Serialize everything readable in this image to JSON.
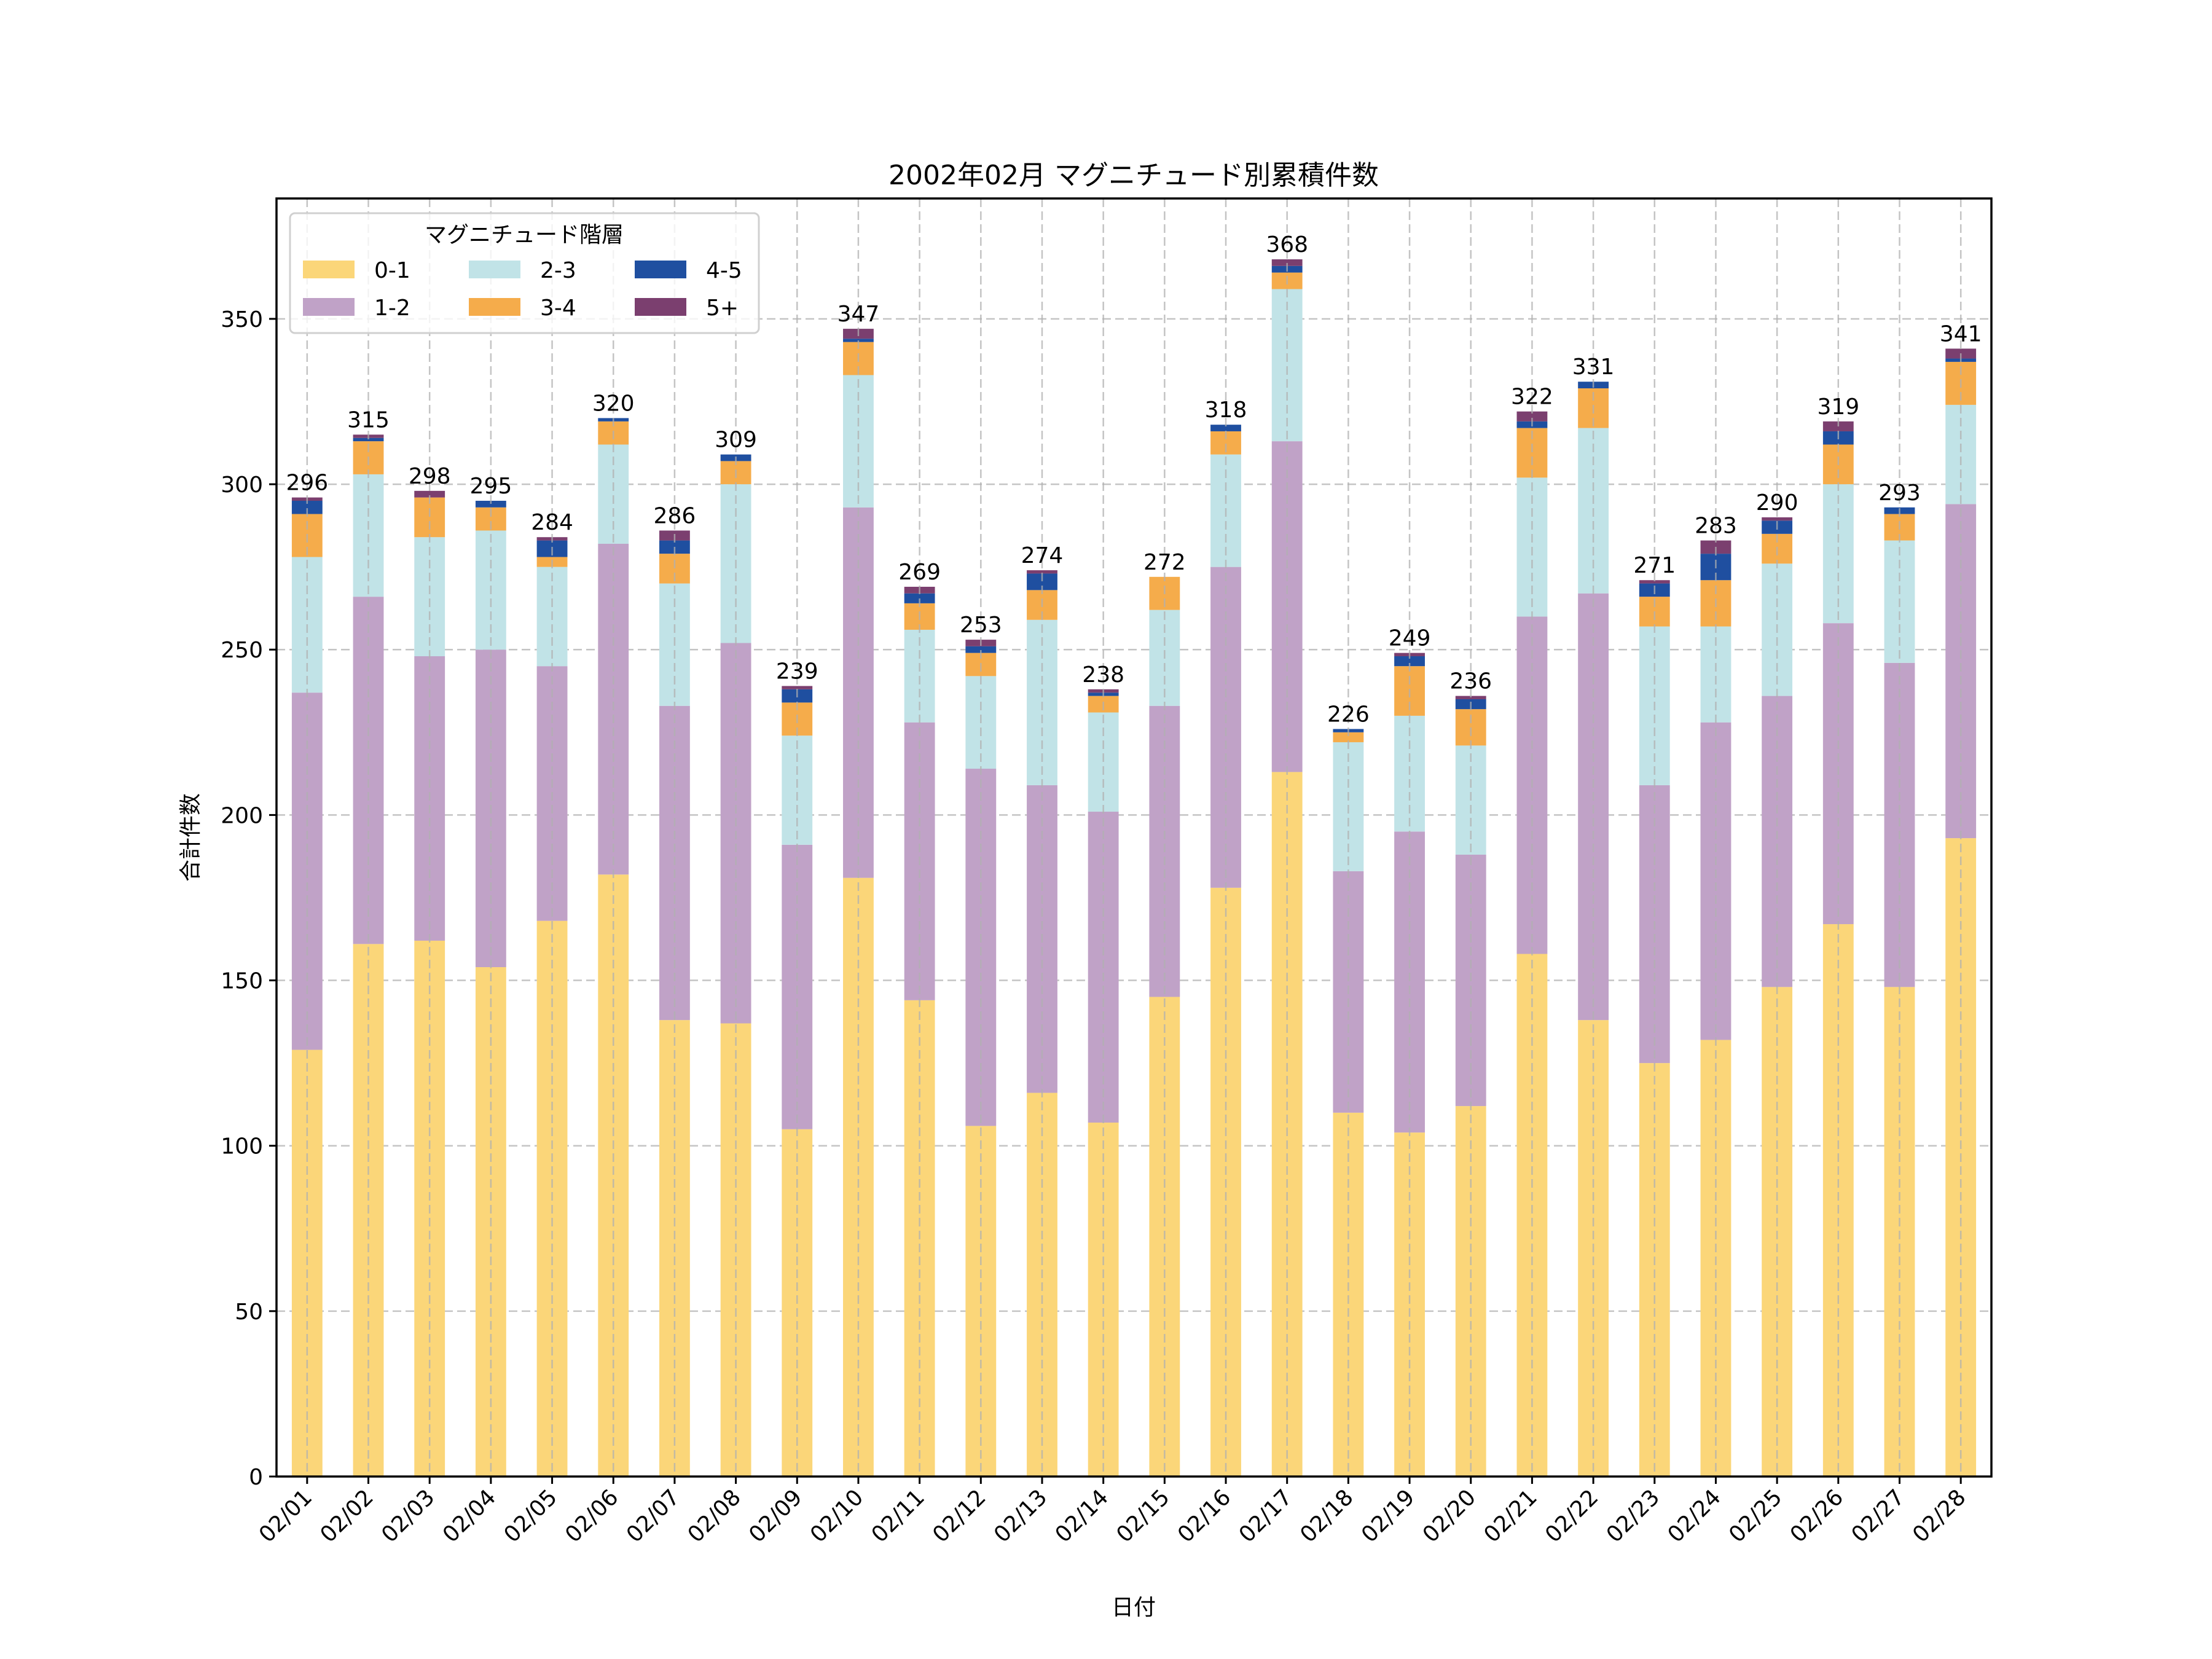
{
  "chart_data": {
    "type": "bar",
    "stacked": true,
    "title": "2002年02月 マグニチュード別累積件数",
    "xlabel": "日付",
    "ylabel": "合計件数",
    "ylim": [
      0,
      386.4
    ],
    "yticks": [
      0,
      50,
      100,
      150,
      200,
      250,
      300,
      350
    ],
    "grid": true,
    "legend": {
      "title": "マグニチュード階層",
      "position": "top-left",
      "columns": 3
    },
    "categories": [
      "02/01",
      "02/02",
      "02/03",
      "02/04",
      "02/05",
      "02/06",
      "02/07",
      "02/08",
      "02/09",
      "02/10",
      "02/11",
      "02/12",
      "02/13",
      "02/14",
      "02/15",
      "02/16",
      "02/17",
      "02/18",
      "02/19",
      "02/20",
      "02/21",
      "02/22",
      "02/23",
      "02/24",
      "02/25",
      "02/26",
      "02/27",
      "02/28"
    ],
    "series": [
      {
        "name": "0-1",
        "color": "#FBD679",
        "values": [
          129,
          161,
          162,
          154,
          168,
          182,
          138,
          137,
          105,
          181,
          144,
          106,
          116,
          107,
          145,
          178,
          213,
          110,
          104,
          112,
          158,
          138,
          125,
          132,
          148,
          167,
          148,
          193
        ]
      },
      {
        "name": "1-2",
        "color": "#C0A2C7",
        "values": [
          108,
          105,
          86,
          96,
          77,
          100,
          95,
          115,
          86,
          112,
          84,
          108,
          93,
          94,
          88,
          97,
          100,
          73,
          91,
          76,
          102,
          129,
          84,
          96,
          88,
          91,
          98,
          101
        ]
      },
      {
        "name": "2-3",
        "color": "#C1E3E7",
        "values": [
          41,
          37,
          36,
          36,
          30,
          30,
          37,
          48,
          33,
          40,
          28,
          28,
          50,
          30,
          29,
          34,
          46,
          39,
          35,
          33,
          42,
          50,
          48,
          29,
          40,
          42,
          37,
          30
        ]
      },
      {
        "name": "3-4",
        "color": "#F5AC4B",
        "values": [
          13,
          10,
          12,
          7,
          3,
          7,
          9,
          7,
          10,
          10,
          8,
          7,
          9,
          5,
          10,
          7,
          5,
          3,
          15,
          11,
          15,
          12,
          9,
          14,
          9,
          12,
          8,
          13
        ]
      },
      {
        "name": "4-5",
        "color": "#1F4FA0",
        "values": [
          4,
          1,
          0,
          2,
          5,
          1,
          4,
          2,
          4,
          1,
          3,
          2,
          5,
          1,
          0,
          2,
          2,
          1,
          3,
          3,
          2,
          2,
          4,
          8,
          4,
          4,
          2,
          1
        ]
      },
      {
        "name": "5+",
        "color": "#7B3F6F",
        "values": [
          1,
          1,
          2,
          0,
          1,
          0,
          3,
          0,
          1,
          3,
          2,
          2,
          1,
          1,
          0,
          0,
          2,
          0,
          1,
          1,
          3,
          0,
          1,
          4,
          1,
          3,
          0,
          3
        ]
      }
    ],
    "totals": [
      296,
      315,
      298,
      295,
      284,
      320,
      286,
      309,
      239,
      347,
      269,
      253,
      274,
      238,
      272,
      318,
      368,
      226,
      249,
      236,
      322,
      331,
      271,
      283,
      290,
      319,
      293,
      341
    ]
  }
}
